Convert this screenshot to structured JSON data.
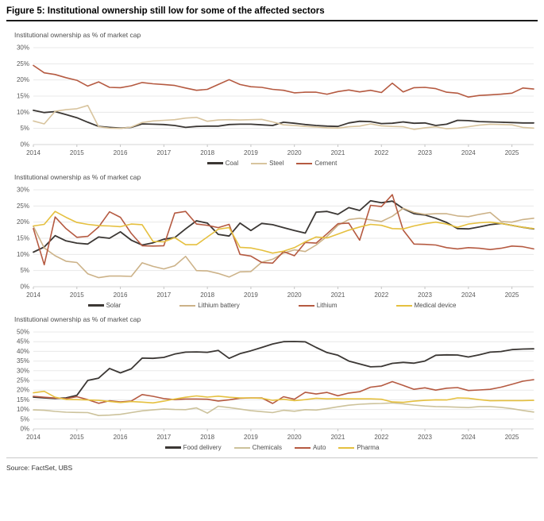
{
  "page": {
    "title": "Figure 5: Institutional ownership still low for some of the affected sectors",
    "source": "Source: FactSet, UBS"
  },
  "style": {
    "grid_color": "#e8e8e8",
    "axis_line_color": "#d4d4d4",
    "tick_color": "#c4c4c4",
    "axis_text_color": "#595959",
    "accent_black": "#3b3734",
    "accent_tan": "#d8c49e",
    "accent_red": "#b55a41",
    "accent_yellow": "#e5c03f"
  },
  "chart_data": [
    {
      "type": "line",
      "subtitle": "Institutional ownership as % of market cap",
      "x_start": 2014,
      "x_step": 0.25,
      "x_end": 2025.5,
      "x_ticks": [
        2014,
        2015,
        2016,
        2017,
        2018,
        2019,
        2020,
        2021,
        2022,
        2023,
        2024,
        2025
      ],
      "ylim": [
        0,
        30
      ],
      "y_tick_step": 5,
      "grid": true,
      "legend_position": "bottom",
      "series": [
        {
          "name": "Coal",
          "color": "#3b3734",
          "width": 1.8,
          "values": [
            10.6,
            9.9,
            10.2,
            9.3,
            8.3,
            6.9,
            5.6,
            5.3,
            5.1,
            5.3,
            6.4,
            6.3,
            6.2,
            5.9,
            5.3,
            5.6,
            5.7,
            5.7,
            6.2,
            6.3,
            6.3,
            6.1,
            5.9,
            6.9,
            6.6,
            6.2,
            5.9,
            5.7,
            5.6,
            6.7,
            7.2,
            7.1,
            6.5,
            6.6,
            7.0,
            6.6,
            6.7,
            5.9,
            6.3,
            7.5,
            7.4,
            7.1,
            7.0,
            6.9,
            6.8,
            6.7,
            6.7
          ]
        },
        {
          "name": "Steel",
          "color": "#d8c49e",
          "width": 1.6,
          "values": [
            7.3,
            6.4,
            10.3,
            10.8,
            11.1,
            12.1,
            5.5,
            5.1,
            5.0,
            5.4,
            6.8,
            7.3,
            7.5,
            7.7,
            8.2,
            8.4,
            7.2,
            7.6,
            7.7,
            7.6,
            7.7,
            7.8,
            7.0,
            6.1,
            5.9,
            5.6,
            5.4,
            5.2,
            5.1,
            5.5,
            5.7,
            6.4,
            5.8,
            5.6,
            5.5,
            4.7,
            5.2,
            5.5,
            4.9,
            5.1,
            5.5,
            6.0,
            6.3,
            6.2,
            6.1,
            5.3,
            5.1
          ]
        },
        {
          "name": "Cement",
          "color": "#b55a41",
          "width": 1.6,
          "values": [
            24.5,
            22.2,
            21.7,
            20.7,
            19.9,
            18.1,
            19.4,
            17.7,
            17.6,
            18.2,
            19.2,
            18.8,
            18.6,
            18.3,
            17.5,
            16.8,
            17.1,
            18.6,
            20.1,
            18.6,
            17.9,
            17.7,
            17.1,
            16.8,
            16.0,
            16.2,
            16.2,
            15.6,
            16.4,
            16.9,
            16.3,
            16.8,
            16.1,
            19.0,
            16.3,
            17.6,
            17.7,
            17.3,
            16.2,
            15.9,
            14.7,
            15.2,
            15.4,
            15.6,
            15.9,
            17.5,
            17.2
          ]
        }
      ]
    },
    {
      "type": "line",
      "subtitle": "Institutional ownership as % of market cap",
      "x_start": 2014,
      "x_step": 0.25,
      "x_end": 2025.5,
      "x_ticks": [
        2014,
        2015,
        2016,
        2017,
        2018,
        2019,
        2020,
        2021,
        2022,
        2023,
        2024,
        2025
      ],
      "ylim": [
        0,
        30
      ],
      "y_tick_step": 5,
      "grid": true,
      "legend_position": "bottom",
      "series": [
        {
          "name": "Solar",
          "color": "#3b3734",
          "width": 1.8,
          "values": [
            10.7,
            12.3,
            15.8,
            14.2,
            13.5,
            13.2,
            15.4,
            15.0,
            17.0,
            14.4,
            12.9,
            13.6,
            14.7,
            15.2,
            17.9,
            20.4,
            19.7,
            16.2,
            15.7,
            19.7,
            17.4,
            19.6,
            19.2,
            18.3,
            17.4,
            16.6,
            23.1,
            23.3,
            22.4,
            24.5,
            23.6,
            26.6,
            26.0,
            26.5,
            24.2,
            22.6,
            22.2,
            21.2,
            19.9,
            18.0,
            17.9,
            18.5,
            19.2,
            19.6,
            19.0,
            18.4,
            17.9
          ]
        },
        {
          "name": "Lithium battery",
          "color": "#ccb globalization88",
          "width": 1.6,
          "values": [
            18.7,
            12.0,
            9.6,
            7.9,
            7.5,
            4.0,
            2.8,
            3.3,
            3.3,
            3.2,
            7.4,
            6.3,
            5.5,
            6.5,
            9.4,
            5.0,
            4.9,
            4.1,
            3.0,
            4.6,
            4.7,
            7.6,
            8.5,
            10.4,
            11.4,
            10.9,
            12.9,
            15.6,
            19.0,
            20.8,
            21.2,
            20.7,
            20.2,
            21.8,
            24.3,
            23.0,
            22.4,
            22.6,
            22.6,
            21.9,
            21.7,
            22.4,
            23.0,
            20.2,
            20.0,
            20.8,
            21.2
          ]
        },
        {
          "name": "Lithium",
          "color": "#b55a41",
          "width": 1.6,
          "values": [
            18.0,
            6.8,
            21.6,
            18.0,
            15.3,
            15.6,
            18.5,
            23.2,
            21.5,
            16.5,
            12.7,
            12.6,
            12.7,
            22.8,
            23.3,
            19.4,
            19.0,
            18.3,
            19.3,
            10.0,
            9.5,
            7.5,
            7.3,
            10.9,
            9.6,
            13.7,
            13.5,
            16.4,
            19.5,
            19.7,
            14.4,
            25.2,
            24.8,
            28.5,
            17.5,
            13.2,
            13.1,
            12.9,
            12.1,
            11.7,
            12.1,
            11.9,
            11.5,
            11.9,
            12.6,
            12.4,
            11.7
          ]
        },
        {
          "name": "Medical device",
          "color": "#e5c03f",
          "width": 1.6,
          "values": [
            18.8,
            19.3,
            23.3,
            21.5,
            19.9,
            19.3,
            18.9,
            18.8,
            18.6,
            19.4,
            19.2,
            14.0,
            13.9,
            15.2,
            13.0,
            13.0,
            15.4,
            17.8,
            18.3,
            12.2,
            12.0,
            11.3,
            10.4,
            11.0,
            12.1,
            13.9,
            15.4,
            15.1,
            16.3,
            17.5,
            18.5,
            19.3,
            19.0,
            18.0,
            17.9,
            18.8,
            19.5,
            20.0,
            19.4,
            18.4,
            19.4,
            19.8,
            20.0,
            19.6,
            19.0,
            18.4,
            18.0
          ]
        }
      ]
    },
    {
      "type": "line",
      "subtitle": "Institutional ownership as % of market cap",
      "x_start": 2014,
      "x_step": 0.25,
      "x_end": 2025.5,
      "x_ticks": [
        2014,
        2015,
        2016,
        2017,
        2018,
        2019,
        2020,
        2021,
        2022,
        2023,
        2024,
        2025
      ],
      "ylim": [
        0,
        50
      ],
      "y_tick_step": 5,
      "grid": true,
      "legend_position": "bottom",
      "series": [
        {
          "name": "Food delivery",
          "color": "#3b3734",
          "width": 1.8,
          "values": [
            16.4,
            16.0,
            15.7,
            16.0,
            17.3,
            25.0,
            26.2,
            31.2,
            28.9,
            31.0,
            36.5,
            36.4,
            36.9,
            38.6,
            39.6,
            39.7,
            39.5,
            40.5,
            36.4,
            38.8,
            40.3,
            42.0,
            43.8,
            45.0,
            45.1,
            44.9,
            42.0,
            39.4,
            38.0,
            35.0,
            33.5,
            32.0,
            32.2,
            33.8,
            34.3,
            33.9,
            35.0,
            38.0,
            38.2,
            38.1,
            37.1,
            38.2,
            39.6,
            39.9,
            40.9,
            41.2,
            41.3
          ]
        },
        {
          "name": "Chemicals",
          "color": "#ccc29b",
          "width": 1.6,
          "values": [
            9.8,
            9.6,
            9.0,
            8.6,
            8.5,
            8.4,
            6.9,
            7.1,
            7.5,
            8.4,
            9.3,
            9.8,
            10.3,
            10.0,
            9.9,
            10.8,
            8.1,
            11.7,
            11.0,
            10.2,
            9.4,
            8.9,
            8.4,
            9.6,
            9.1,
            9.9,
            9.7,
            10.5,
            11.4,
            12.2,
            12.7,
            13.0,
            13.1,
            13.4,
            12.9,
            12.3,
            11.8,
            11.5,
            11.4,
            11.2,
            11.0,
            11.5,
            11.5,
            11.1,
            10.4,
            9.5,
            8.7
          ]
        },
        {
          "name": "Auto",
          "color": "#b55a41",
          "width": 1.6,
          "values": [
            16.8,
            16.3,
            15.9,
            15.6,
            16.6,
            15.1,
            13.2,
            14.5,
            13.9,
            14.4,
            17.7,
            16.8,
            15.6,
            15.1,
            15.4,
            15.4,
            15.3,
            14.4,
            15.0,
            15.8,
            16.0,
            16.0,
            13.1,
            16.6,
            15.3,
            18.9,
            18.0,
            18.8,
            17.1,
            18.5,
            19.2,
            21.5,
            22.2,
            24.4,
            22.4,
            20.4,
            21.2,
            20.0,
            21.0,
            21.3,
            19.8,
            20.1,
            20.4,
            21.5,
            23.0,
            24.6,
            25.4
          ]
        },
        {
          "name": "Pharma",
          "color": "#e5c03f",
          "width": 1.6,
          "values": [
            18.6,
            19.4,
            16.3,
            15.2,
            15.1,
            14.9,
            14.7,
            14.2,
            13.6,
            14.1,
            13.8,
            13.4,
            14.3,
            15.4,
            16.3,
            17.0,
            16.4,
            16.9,
            16.3,
            16.0,
            16.0,
            15.8,
            14.7,
            15.3,
            14.6,
            15.1,
            15.8,
            15.5,
            15.6,
            15.5,
            15.5,
            15.5,
            15.3,
            13.9,
            13.7,
            14.3,
            14.7,
            15.0,
            14.9,
            16.0,
            15.8,
            15.1,
            14.5,
            14.6,
            14.6,
            14.6,
            14.7
          ]
        }
      ]
    }
  ]
}
